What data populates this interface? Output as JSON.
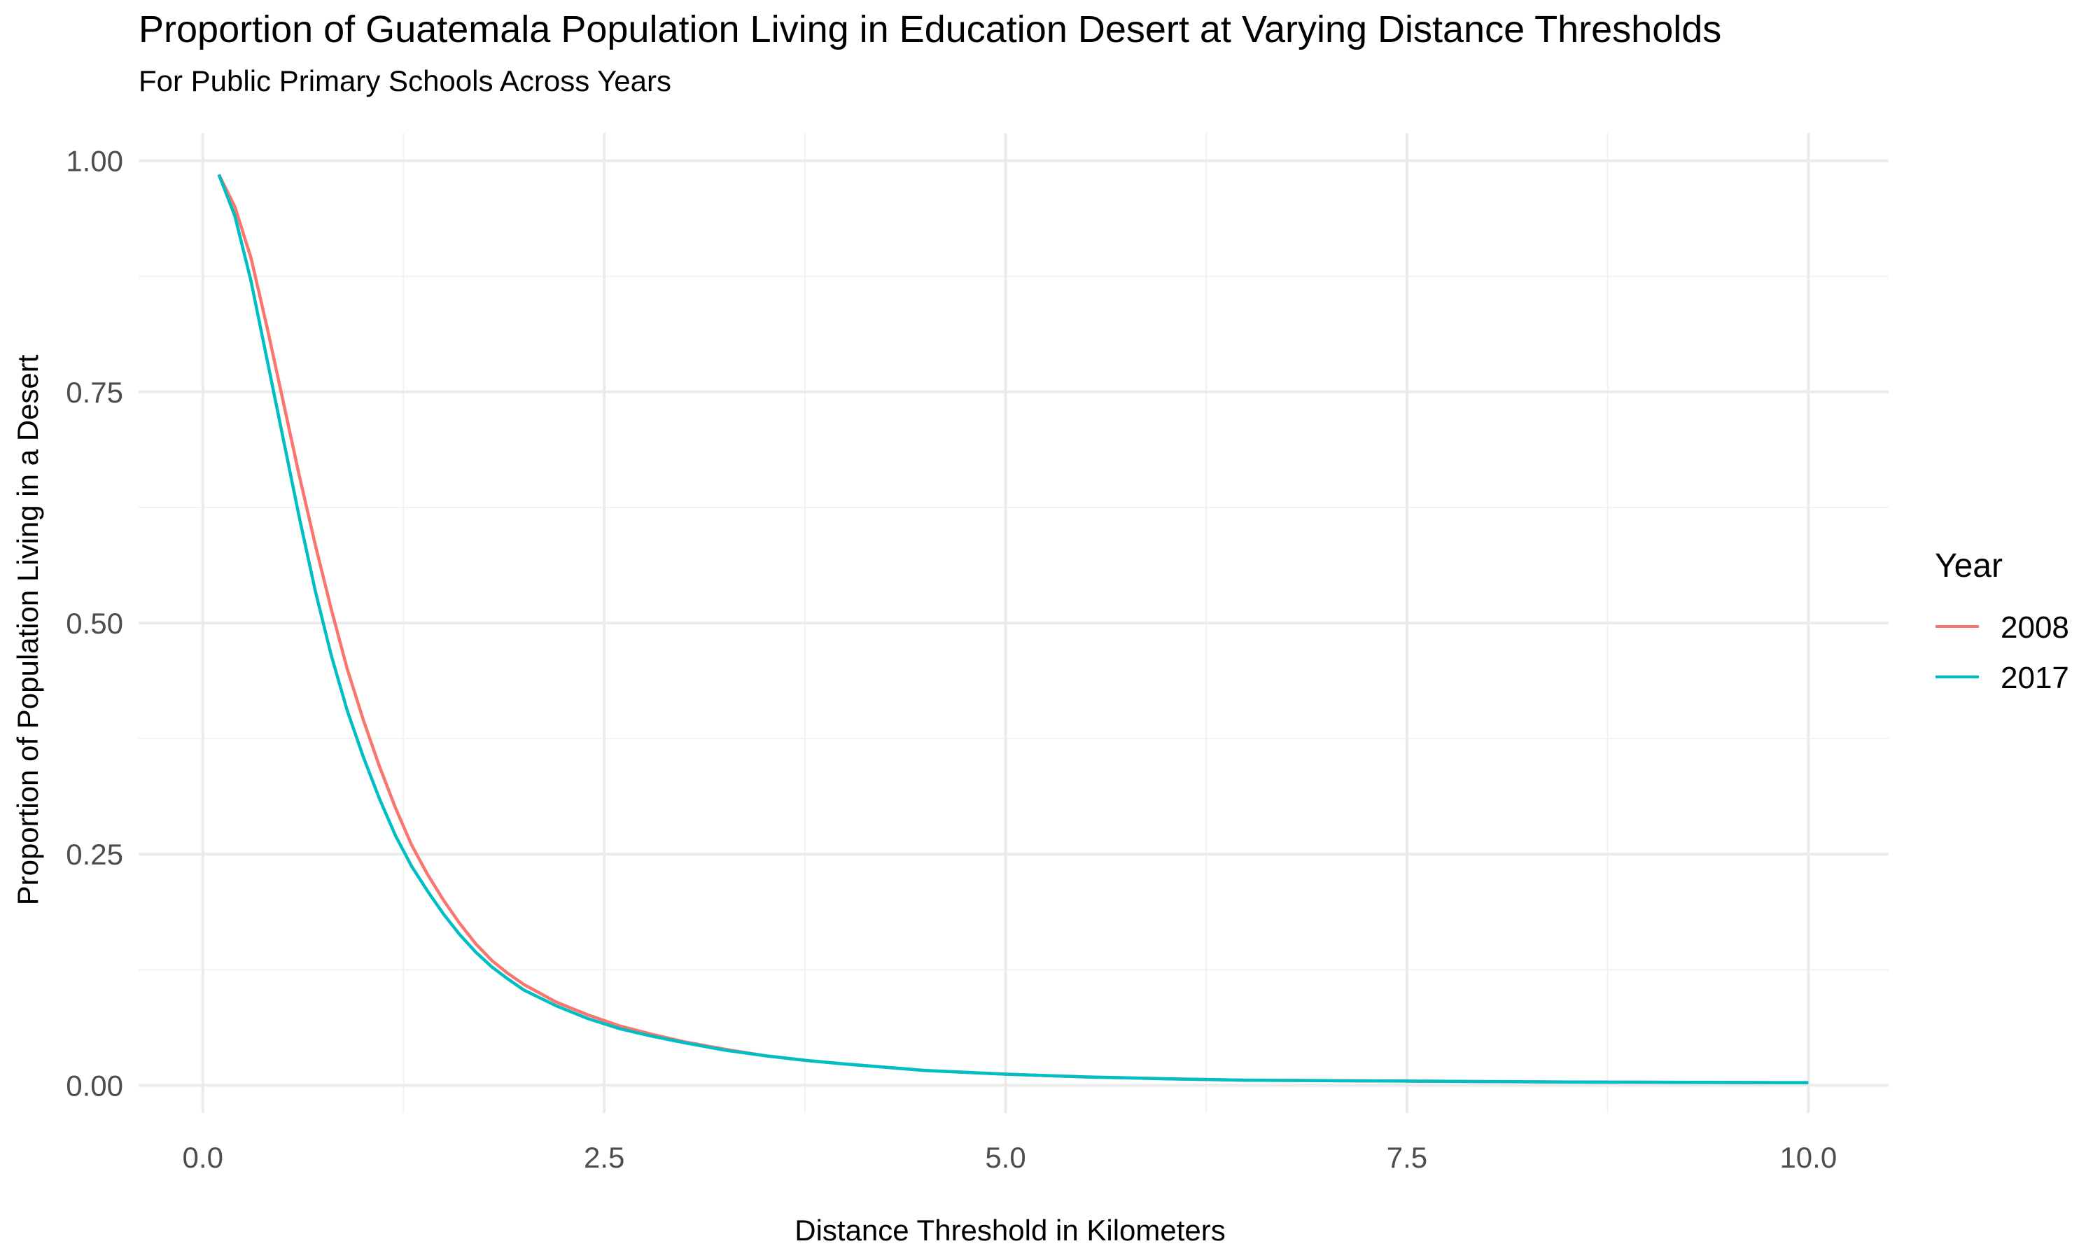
{
  "chart_data": {
    "type": "line",
    "title": "Proportion of Guatemala Population Living in Education Desert at Varying Distance Thresholds",
    "subtitle": "For Public Primary Schools Across Years",
    "xlabel": "Distance Threshold in Kilometers",
    "ylabel": "Proportion of Population Living in a Desert",
    "xlim": [
      -0.4,
      10.5
    ],
    "ylim": [
      -0.03,
      1.03
    ],
    "x_ticks": [
      0.0,
      2.5,
      5.0,
      7.5,
      10.0
    ],
    "x_tick_labels": [
      "0.0",
      "2.5",
      "5.0",
      "7.5",
      "10.0"
    ],
    "y_ticks": [
      0.0,
      0.25,
      0.5,
      0.75,
      1.0
    ],
    "y_tick_labels": [
      "0.00",
      "0.25",
      "0.50",
      "0.75",
      "1.00"
    ],
    "grid": true,
    "legend": {
      "title": "Year",
      "position": "right"
    },
    "x": [
      0.1,
      0.2,
      0.3,
      0.4,
      0.5,
      0.6,
      0.7,
      0.8,
      0.9,
      1.0,
      1.1,
      1.2,
      1.3,
      1.4,
      1.5,
      1.6,
      1.7,
      1.8,
      1.9,
      2.0,
      2.2,
      2.4,
      2.6,
      2.8,
      3.0,
      3.25,
      3.5,
      3.75,
      4.0,
      4.5,
      5.0,
      5.5,
      6.0,
      6.5,
      7.0,
      7.5,
      8.0,
      8.5,
      9.0,
      9.5,
      10.0
    ],
    "series": [
      {
        "name": "2008",
        "color": "#F8766D",
        "values": [
          0.985,
          0.95,
          0.895,
          0.82,
          0.74,
          0.66,
          0.585,
          0.515,
          0.45,
          0.395,
          0.345,
          0.3,
          0.26,
          0.228,
          0.2,
          0.175,
          0.153,
          0.135,
          0.121,
          0.109,
          0.09,
          0.076,
          0.064,
          0.055,
          0.047,
          0.039,
          0.032,
          0.027,
          0.023,
          0.016,
          0.012,
          0.009,
          0.007,
          0.0055,
          0.005,
          0.0045,
          0.004,
          0.0035,
          0.0033,
          0.003,
          0.0028
        ]
      },
      {
        "name": "2017",
        "color": "#00BFC4",
        "values": [
          0.985,
          0.94,
          0.87,
          0.785,
          0.7,
          0.615,
          0.535,
          0.465,
          0.405,
          0.355,
          0.31,
          0.27,
          0.237,
          0.21,
          0.185,
          0.163,
          0.144,
          0.128,
          0.115,
          0.103,
          0.086,
          0.072,
          0.061,
          0.053,
          0.046,
          0.038,
          0.032,
          0.027,
          0.023,
          0.016,
          0.012,
          0.009,
          0.007,
          0.0055,
          0.005,
          0.0045,
          0.004,
          0.0035,
          0.0033,
          0.003,
          0.0028
        ]
      }
    ]
  }
}
